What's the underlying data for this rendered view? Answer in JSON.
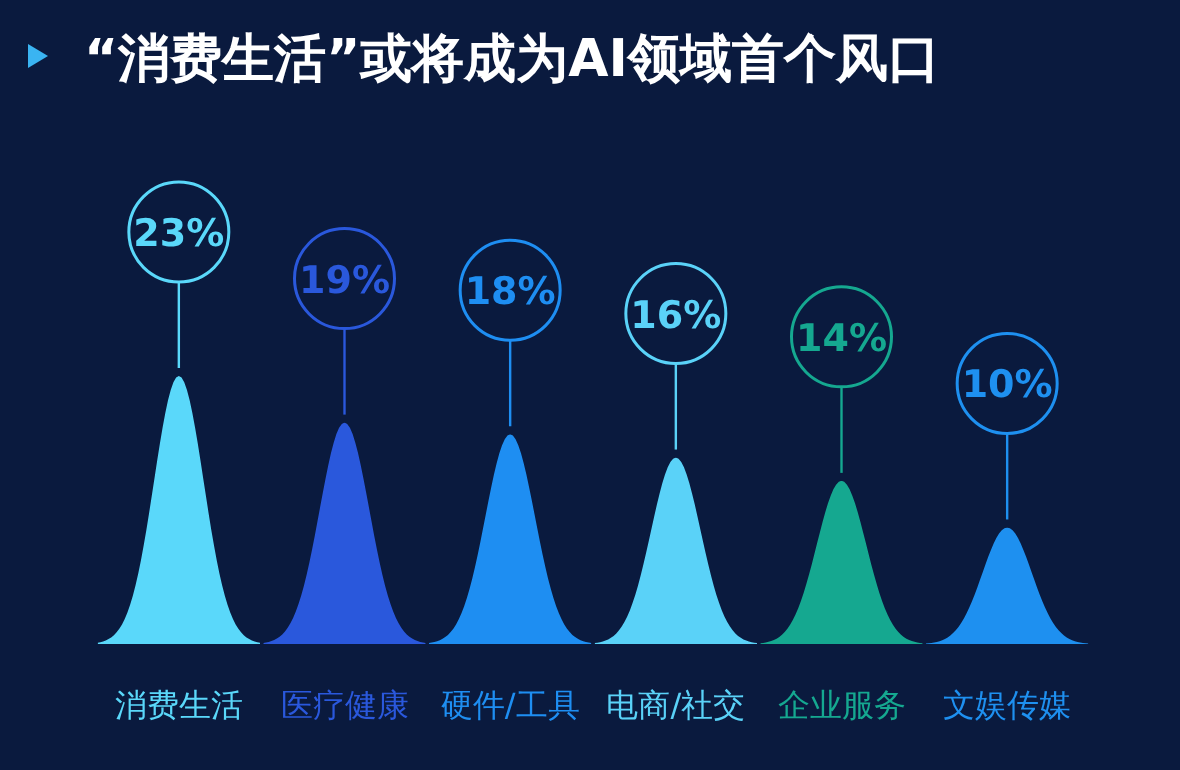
{
  "chart_data": {
    "type": "bar",
    "title": "“消费生活”或将成为AI领域首个风口",
    "categories": [
      "消费生活",
      "医疗健康",
      "硬件/工具",
      "电商/社交",
      "企业服务",
      "文娱传媒"
    ],
    "values": [
      23,
      19,
      18,
      16,
      14,
      10
    ],
    "colors": [
      "#5ad8fa",
      "#2a58dc",
      "#1e8ef2",
      "#5ad2f8",
      "#15a890",
      "#1e90f0"
    ],
    "value_labels": [
      "23%",
      "19%",
      "18%",
      "16%",
      "14%",
      "10%"
    ]
  }
}
